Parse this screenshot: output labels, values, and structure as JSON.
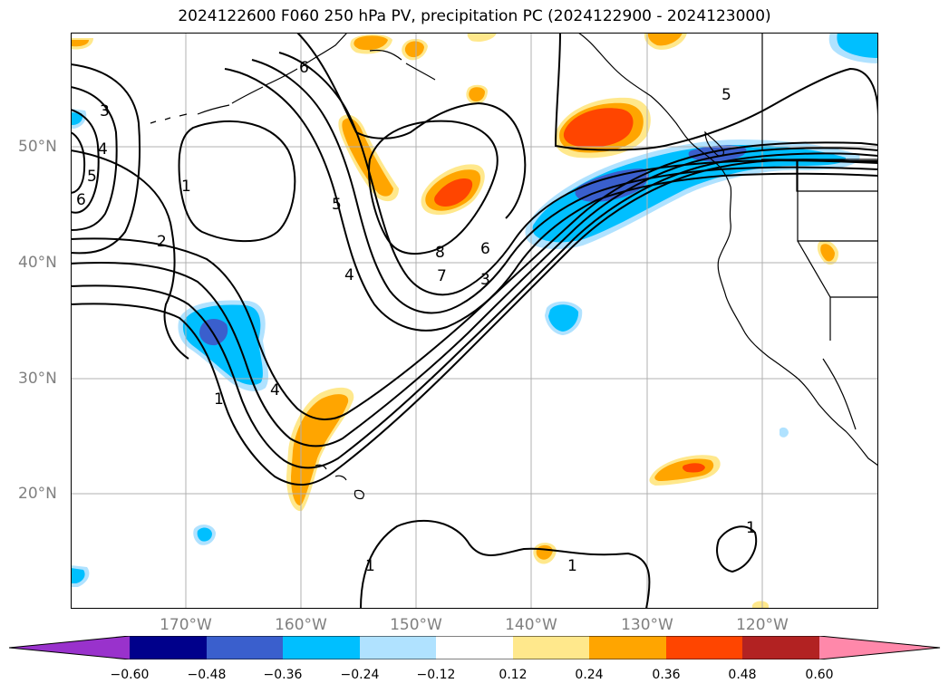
{
  "title": "2024122600 F060 250 hPa PV, precipitation PC (2024122900 - 2024123000)",
  "lat_labels": [
    "50°N",
    "40°N",
    "30°N",
    "20°N"
  ],
  "lon_labels": [
    "170°W",
    "160°W",
    "150°W",
    "140°W",
    "130°W",
    "120°W"
  ],
  "contour_labels": [
    "3",
    "4",
    "5",
    "6",
    "1",
    "2",
    "5",
    "4",
    "8",
    "7",
    "6",
    "3",
    "1",
    "4",
    "1",
    "1",
    "1",
    "5",
    "6"
  ],
  "colorbar": {
    "ticks": [
      "−0.60",
      "−0.48",
      "−0.36",
      "−0.24",
      "−0.12",
      "0.12",
      "0.24",
      "0.36",
      "0.48",
      "0.60"
    ],
    "colors": {
      "under": "#9932CC",
      "b1": "#00008B",
      "b2": "#3A5FCD",
      "b3": "#00BFFF",
      "b4": "#B0E2FF",
      "b5": "#FFFFFF",
      "b6": "#FFE88C",
      "b7": "#FFA500",
      "b8": "#FF4500",
      "b9": "#B22222",
      "over": "#FF88AA"
    }
  }
}
